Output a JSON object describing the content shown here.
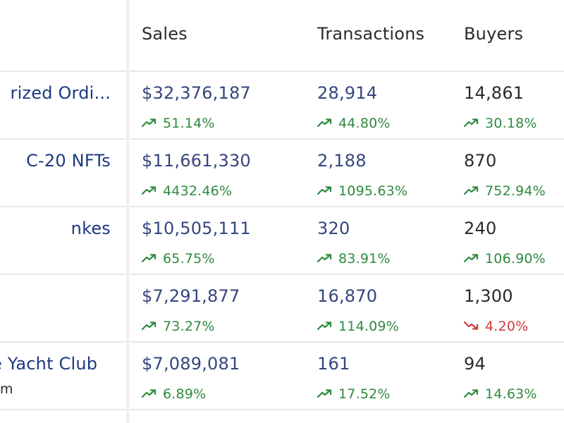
{
  "header": {
    "sales": "Sales",
    "transactions": "Transactions",
    "buyers": "Buyers"
  },
  "colors": {
    "name": "#1c3a80",
    "value": "#34467e",
    "up": "#2e8a3e",
    "down": "#d03a3a",
    "divider": "#e6e6e6"
  },
  "rows": [
    {
      "name": "rized Ordi...",
      "sub": "",
      "sales": "$32,376,187",
      "sales_change": "51.14%",
      "sales_dir": "up",
      "transactions": "28,914",
      "transactions_change": "44.80%",
      "transactions_dir": "up",
      "buyers": "14,861",
      "buyers_change": "30.18%",
      "buyers_dir": "up"
    },
    {
      "name": "C-20 NFTs",
      "sub": "",
      "sales": "$11,661,330",
      "sales_change": "4432.46%",
      "sales_dir": "up",
      "transactions": "2,188",
      "transactions_change": "1095.63%",
      "transactions_dir": "up",
      "buyers": "870",
      "buyers_change": "752.94%",
      "buyers_dir": "up"
    },
    {
      "name": "nkes",
      "sub": "",
      "sales": "$10,505,111",
      "sales_change": "65.75%",
      "sales_dir": "up",
      "transactions": "320",
      "transactions_change": "83.91%",
      "transactions_dir": "up",
      "buyers": "240",
      "buyers_change": "106.90%",
      "buyers_dir": "up"
    },
    {
      "name": "",
      "sub": "",
      "sales": "$7,291,877",
      "sales_change": "73.27%",
      "sales_dir": "up",
      "transactions": "16,870",
      "transactions_change": "114.09%",
      "transactions_dir": "up",
      "buyers": "1,300",
      "buyers_change": "4.20%",
      "buyers_dir": "down"
    },
    {
      "name": "e Yacht Club",
      "sub": "m",
      "sales": "$7,089,081",
      "sales_change": "6.89%",
      "sales_dir": "up",
      "transactions": "161",
      "transactions_change": "17.52%",
      "transactions_dir": "up",
      "buyers": "94",
      "buyers_change": "14.63%",
      "buyers_dir": "up"
    }
  ]
}
